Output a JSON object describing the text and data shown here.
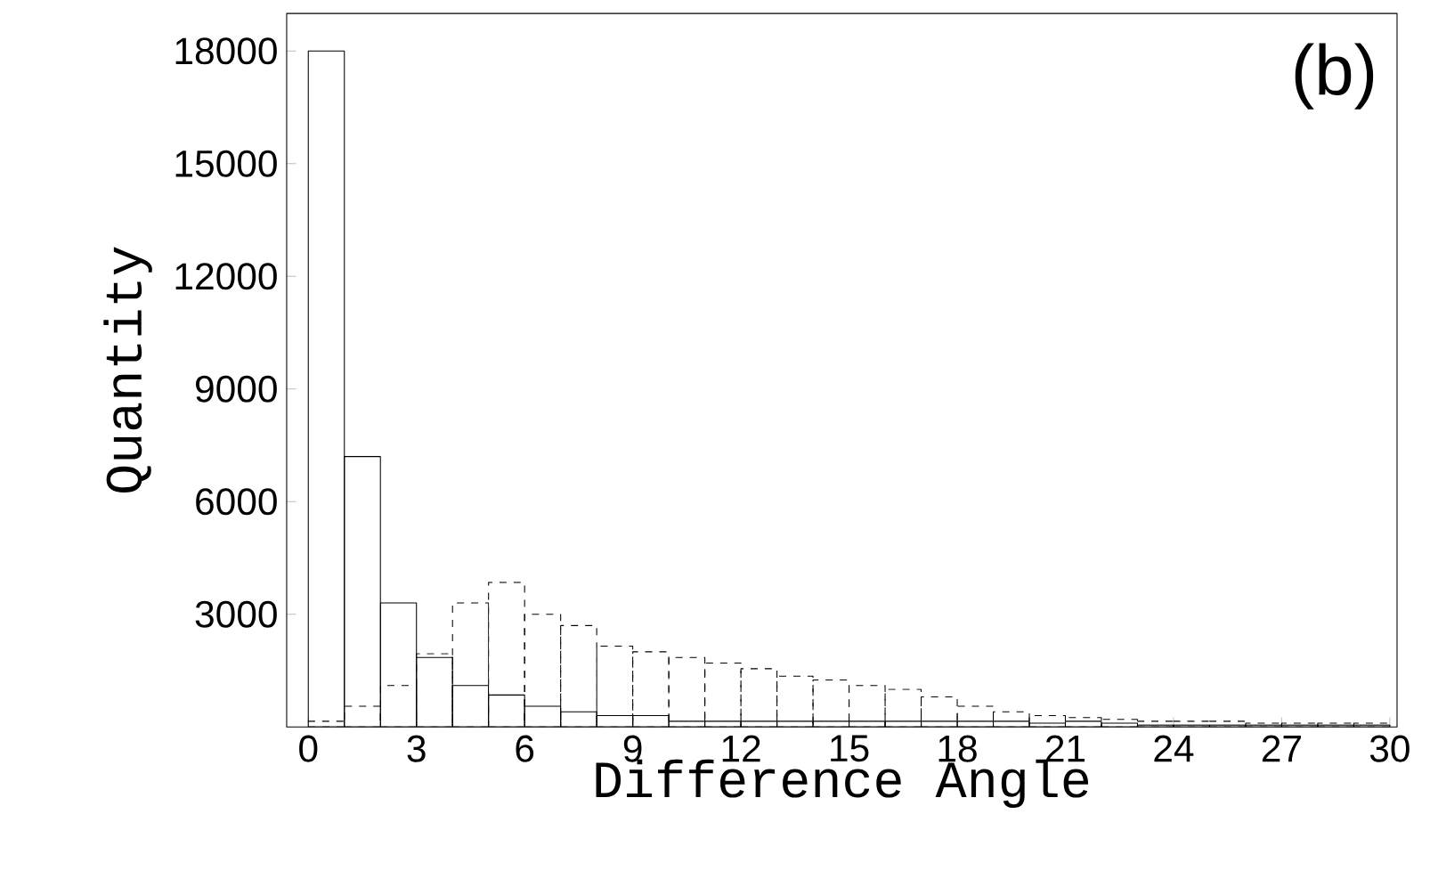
{
  "chart_data": {
    "type": "histogram",
    "xlabel": "Difference Angle",
    "ylabel": "Quantity",
    "bins": [
      0,
      1,
      2,
      3,
      4,
      5,
      6,
      7,
      8,
      9,
      10,
      11,
      12,
      13,
      14,
      15,
      16,
      17,
      18,
      19,
      20,
      21,
      22,
      23,
      24,
      25,
      26,
      27,
      28,
      29,
      30
    ],
    "series": [
      {
        "color": "#000000",
        "line_style": "solid",
        "values": [
          18000,
          7200,
          3300,
          1850,
          1100,
          850,
          550,
          400,
          300,
          300,
          150,
          150,
          150,
          150,
          150,
          150,
          150,
          150,
          150,
          150,
          100,
          150,
          100,
          50,
          50,
          50,
          50,
          50,
          50,
          50
        ]
      },
      {
        "color": "#000000",
        "line_style": "dashed",
        "values": [
          150,
          550,
          1100,
          1950,
          3300,
          3850,
          3000,
          2700,
          2150,
          2000,
          1850,
          1700,
          1550,
          1350,
          1250,
          1100,
          1000,
          800,
          550,
          400,
          300,
          250,
          200,
          150,
          150,
          150,
          100,
          100,
          100,
          100
        ]
      }
    ],
    "xlim": [
      -0.6,
      30.2
    ],
    "ylim": [
      0,
      19000
    ],
    "xticks": [
      0,
      3,
      6,
      9,
      12,
      15,
      18,
      21,
      24,
      27,
      30
    ],
    "yticks": [
      3000,
      6000,
      9000,
      12000,
      15000,
      18000
    ],
    "annotations": [
      "(b)"
    ]
  }
}
